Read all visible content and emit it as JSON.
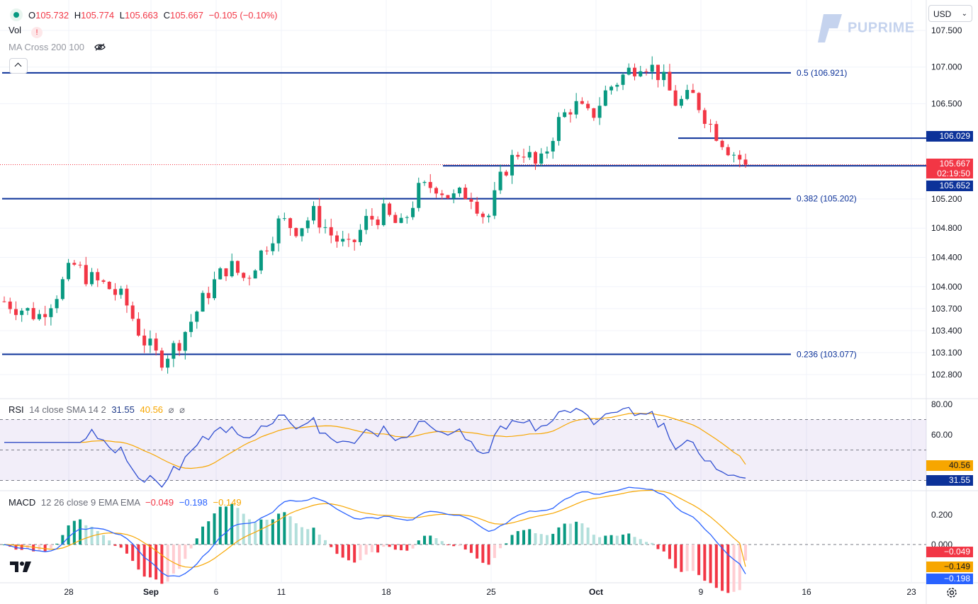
{
  "header": {
    "ohlc": {
      "o_label": "O",
      "o": "105.732",
      "h_label": "H",
      "h": "105.774",
      "l_label": "L",
      "l": "105.663",
      "c_label": "C",
      "c": "105.667",
      "change": "−0.105 (−0.10%)"
    },
    "vol_label": "Vol",
    "vol_warning": "!",
    "ma_label": "MA Cross 200 100",
    "currency": "USD",
    "watermark": "PUPRIME"
  },
  "rsi_legend": {
    "label": "RSI",
    "params": "14 close SMA 14 2",
    "rsi": "31.55",
    "sma": "40.56",
    "na1": "⌀",
    "na2": "⌀"
  },
  "macd_legend": {
    "label": "MACD",
    "params": "12 26 close 9 EMA EMA",
    "hist": "−0.049",
    "macd": "−0.198",
    "signal": "−0.149"
  },
  "price_tags": {
    "level_106": "106.029",
    "last": "105.667",
    "countdown": "02:19:50",
    "level_105": "105.652",
    "rsi_sma": "40.56",
    "rsi": "31.55",
    "macd_hist": "−0.049",
    "macd_signal": "−0.149",
    "macd_line": "−0.198"
  },
  "fib_labels": {
    "f05": "0.5 (106.921)",
    "f0382": "0.382 (105.202)",
    "f0236": "0.236 (103.077)"
  },
  "price_axis": [
    "107.500",
    "107.000",
    "106.500",
    "105.200",
    "104.800",
    "104.400",
    "104.000",
    "103.700",
    "103.400",
    "103.100",
    "102.800"
  ],
  "rsi_axis": [
    "80.00",
    "60.00"
  ],
  "macd_axis": [
    "0.200",
    "0.000"
  ],
  "time_axis": [
    "28",
    "Sep",
    "6",
    "11",
    "18",
    "25",
    "Oct",
    "9",
    "16",
    "23"
  ],
  "colors": {
    "up": "#089981",
    "down": "#f23645",
    "fib": "#0c3299",
    "rsi_line": "#2f4ed1",
    "rsi_sma": "#f7a600",
    "macd_line": "#2962ff",
    "signal_line": "#f7a600"
  },
  "chart_data": {
    "type": "candlestick",
    "timeframe_note": "daily-ish bars",
    "price_range": [
      102.6,
      107.75
    ],
    "fib_levels": [
      {
        "ratio": 0.5,
        "price": 106.921
      },
      {
        "ratio": 0.382,
        "price": 105.202
      },
      {
        "ratio": 0.236,
        "price": 103.077
      }
    ],
    "horizontal_levels": [
      106.029,
      105.652
    ],
    "last_price": 105.667,
    "approx_close_path": [
      103.8,
      103.7,
      103.6,
      103.9,
      104.3,
      104.1,
      104.0,
      103.8,
      103.3,
      103.0,
      103.2,
      103.6,
      104.0,
      104.3,
      104.1,
      104.5,
      104.9,
      104.8,
      105.0,
      104.7,
      104.5,
      104.9,
      105.0,
      104.8,
      105.3,
      105.4,
      105.2,
      105.3,
      104.9,
      105.6,
      105.9,
      105.6,
      106.2,
      106.5,
      106.3,
      106.7,
      106.9,
      107.1,
      106.9,
      106.5,
      106.6,
      106.2,
      105.9,
      105.67
    ],
    "rsi": {
      "current": 31.55,
      "sma": 40.56,
      "upper": 70,
      "middle": 50,
      "lower": 30,
      "range": [
        20,
        85
      ]
    },
    "macd": {
      "macd": -0.198,
      "signal": -0.149,
      "hist": -0.049,
      "range": [
        -0.22,
        0.33
      ]
    }
  }
}
